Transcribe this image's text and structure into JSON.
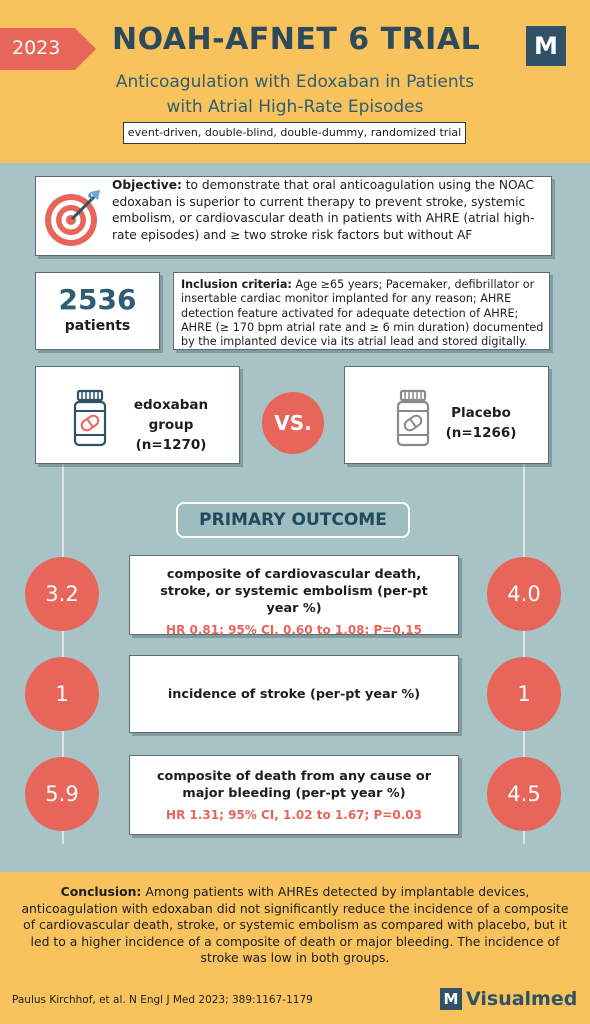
{
  "header": {
    "year": "2023",
    "title": "NOAH-AFNET 6 TRIAL",
    "logo_letter": "M",
    "subtitle_line1": "Anticoagulation with Edoxaban in Patients",
    "subtitle_line2": "with Atrial High-Rate Episodes",
    "design": "event-driven, double-blind, double-dummy, randomized trial"
  },
  "objective": {
    "label": "Objective:",
    "text": " to demonstrate that oral anticoagulation using the NOAC edoxaban is superior to current therapy to prevent stroke, systemic embolism, or cardiovascular death in patients with AHRE (atrial high-rate episodes) and ≥ two stroke risk factors but without AF"
  },
  "patients": {
    "count": "2536",
    "label": "patients"
  },
  "inclusion": {
    "label": "Inclusion criteria:",
    "text": " Age ≥65 years; Pacemaker, defibrillator or insertable cardiac monitor implanted for any reason; AHRE detection feature activated for adequate detection of AHRE; AHRE (≥ 170 bpm atrial rate and ≥ 6 min duration) documented by the implanted device via its atrial lead and stored digitally."
  },
  "arms": {
    "left_line1": "edoxaban",
    "left_line2": "group",
    "left_line3": "(n=1270)",
    "vs": "VS.",
    "right_line1": "Placebo",
    "right_line2": "(n=1266)"
  },
  "primary_outcome_label": "PRIMARY OUTCOME",
  "outcomes": [
    {
      "title": "composite of cardiovascular death, stroke, or systemic embolism (per-pt year %)",
      "stat": "HR 0.81; 95% CI, 0.60 to 1.08; P=0.15",
      "left": "3.2",
      "right": "4.0"
    },
    {
      "title": "incidence of stroke (per-pt year %)",
      "stat": "",
      "left": "1",
      "right": "1"
    },
    {
      "title": "composite of death from any cause or major bleeding (per-pt year %)",
      "stat": "HR 1.31; 95% CI, 1.02 to 1.67; P=0.03",
      "left": "5.9",
      "right": "4.5"
    }
  ],
  "conclusion": {
    "label": "Conclusion:",
    "text": " Among patients with AHREs detected by implantable devices, anticoagulation with edoxaban did not significantly reduce the incidence of a composite of cardiovascular death, stroke, or systemic embolism as compared with placebo, but it led to a higher incidence of a composite of death or major bleeding. The incidence of stroke was low in both groups."
  },
  "footer": {
    "citation": "Paulus Kirchhof, et al.  N Engl J Med 2023; 389:1167-1179",
    "brand_letter": "M",
    "brand": "Visualmed"
  },
  "colors": {
    "accent": "#e8655a",
    "header_bg": "#f8c35d",
    "body_bg": "#a8c3c5",
    "brand": "#2f5266"
  }
}
